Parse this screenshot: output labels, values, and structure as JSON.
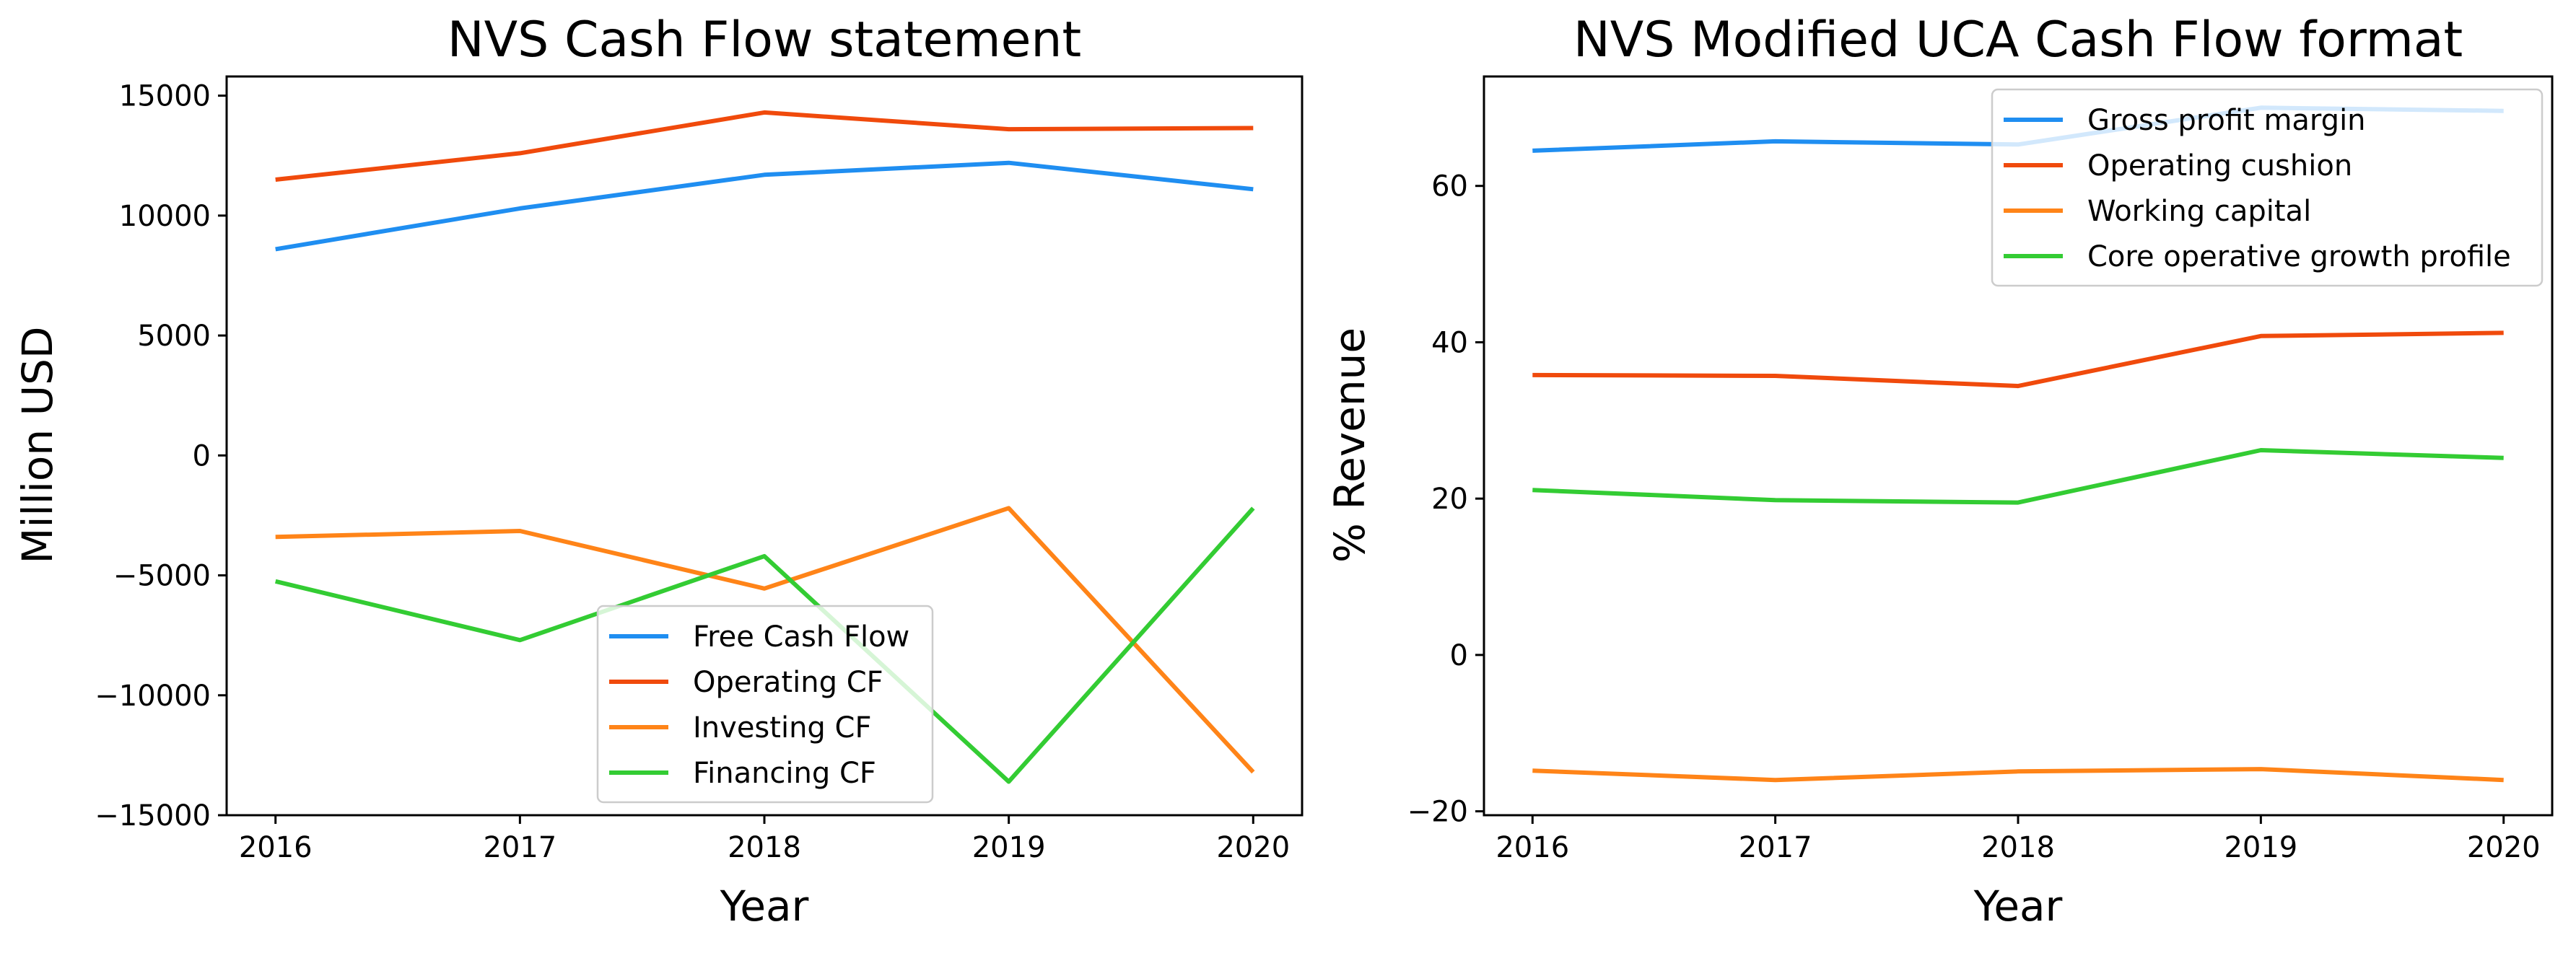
{
  "chart_data": [
    {
      "type": "line",
      "title": "NVS Cash Flow statement",
      "xlabel": "Year",
      "ylabel": "Million USD",
      "x": [
        2016,
        2017,
        2018,
        2019,
        2020
      ],
      "xticks": [
        "2016",
        "2017",
        "2018",
        "2019",
        "2020"
      ],
      "xlim": [
        2015.8,
        2020.2
      ],
      "ylim": [
        -15000,
        15800
      ],
      "yticks": [
        -15000,
        -10000,
        -5000,
        0,
        5000,
        10000,
        15000
      ],
      "ytick_labels": [
        "−15000",
        "−10000",
        "−5000",
        "0",
        "5000",
        "10000",
        "15000"
      ],
      "grid": false,
      "legend_position": "lower-center",
      "series": [
        {
          "name": "Free Cash Flow",
          "color": "#1f8ef1",
          "values": [
            8600,
            10300,
            11700,
            12200,
            11100
          ]
        },
        {
          "name": "Operating CF",
          "color": "#f04a0c",
          "values": [
            11500,
            12600,
            14300,
            13600,
            13650
          ]
        },
        {
          "name": "Investing CF",
          "color": "#ff8418",
          "values": [
            -3400,
            -3150,
            -5550,
            -2200,
            -13200
          ]
        },
        {
          "name": "Financing CF",
          "color": "#33cc33",
          "values": [
            -5250,
            -7700,
            -4200,
            -13600,
            -2200
          ]
        }
      ]
    },
    {
      "type": "line",
      "title": "NVS Modified UCA Cash Flow format",
      "xlabel": "Year",
      "ylabel": "% Revenue",
      "x": [
        2016,
        2017,
        2018,
        2019,
        2020
      ],
      "xticks": [
        "2016",
        "2017",
        "2018",
        "2019",
        "2020"
      ],
      "xlim": [
        2015.8,
        2020.2
      ],
      "ylim": [
        -20.5,
        74
      ],
      "yticks": [
        -20,
        0,
        20,
        40,
        60
      ],
      "ytick_labels": [
        "−20",
        "0",
        "20",
        "40",
        "60"
      ],
      "grid": false,
      "legend_position": "upper-right",
      "series": [
        {
          "name": "Gross profit margin",
          "color": "#1f8ef1",
          "values": [
            64.5,
            65.7,
            65.3,
            70.0,
            69.6
          ]
        },
        {
          "name": "Operating cushion",
          "color": "#f04a0c",
          "values": [
            35.8,
            35.7,
            34.4,
            40.8,
            41.2
          ]
        },
        {
          "name": "Working capital",
          "color": "#ff8418",
          "values": [
            -14.8,
            -16.0,
            -14.9,
            -14.6,
            -16.0
          ]
        },
        {
          "name": "Core operative growth profile",
          "color": "#33cc33",
          "values": [
            21.1,
            19.8,
            19.5,
            26.2,
            25.2
          ]
        }
      ]
    }
  ]
}
